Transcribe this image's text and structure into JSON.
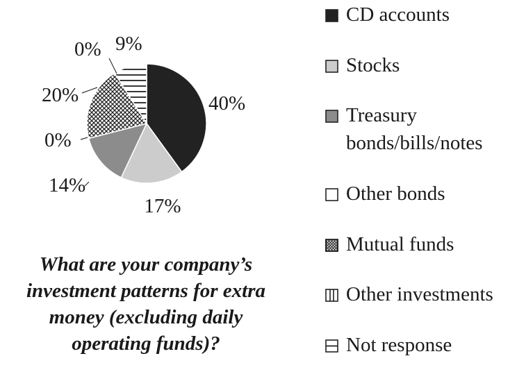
{
  "chart_data": {
    "type": "pie",
    "title": "What are your company’s investment patterns for extra money (excluding daily operating funds)?",
    "title_lines": [
      "What are your company’s",
      "investment patterns for extra",
      "money (excluding daily",
      "operating funds)?"
    ],
    "legend_position": "right",
    "slices": [
      {
        "name": "CD accounts",
        "value": 40,
        "label": "40%",
        "fill": "#222222",
        "pattern": "solid"
      },
      {
        "name": "Stocks",
        "value": 17,
        "label": "17%",
        "fill": "#cccccc",
        "pattern": "solid"
      },
      {
        "name": "Treasury bonds/bills/notes",
        "value": 14,
        "label": "14%",
        "fill": "#8c8c8c",
        "pattern": "solid"
      },
      {
        "name": "Other bonds",
        "value": 0,
        "label": "0%",
        "fill": "#ffffff",
        "pattern": "solid"
      },
      {
        "name": "Mutual funds",
        "value": 20,
        "label": "20%",
        "fill": "#ffffff",
        "pattern": "crosshatch"
      },
      {
        "name": "Other investments",
        "value": 0,
        "label": "0%",
        "fill": "#ffffff",
        "pattern": "vertical"
      },
      {
        "name": "Not response",
        "value": 9,
        "label": "9%",
        "fill": "#ffffff",
        "pattern": "horizontal"
      }
    ]
  }
}
